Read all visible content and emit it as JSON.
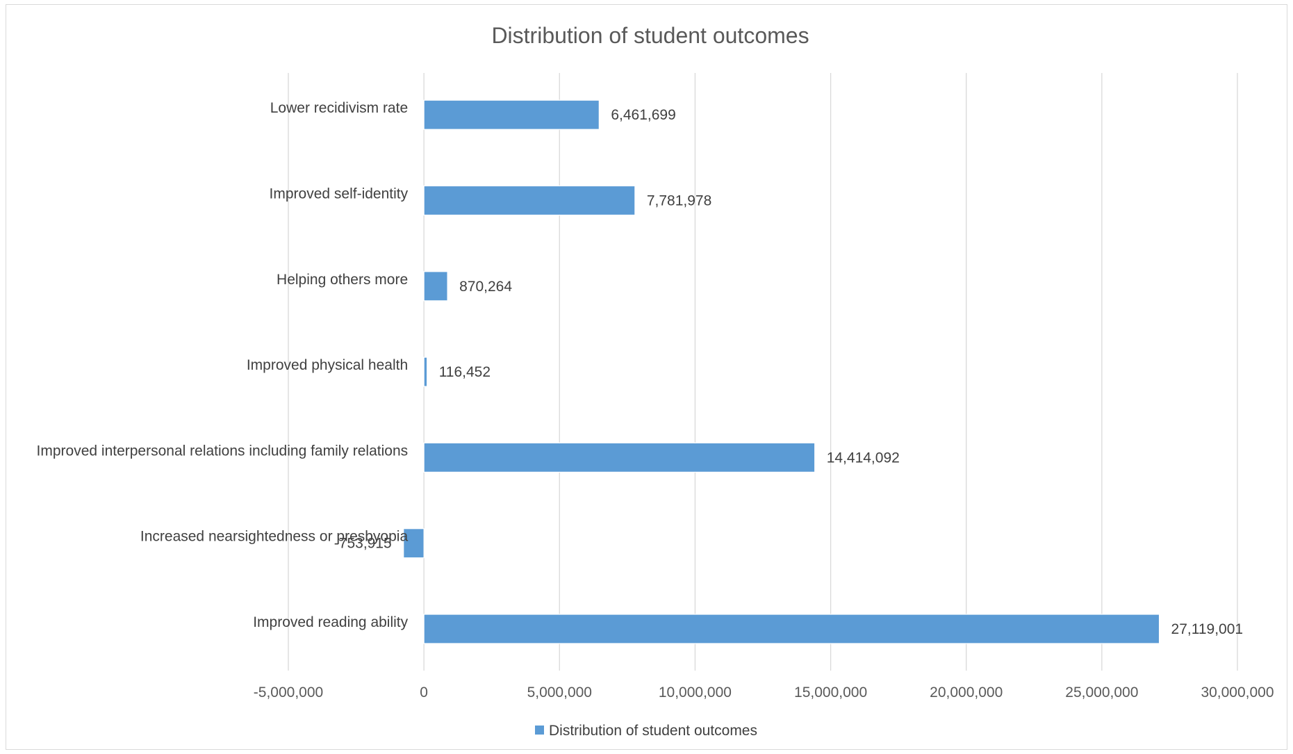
{
  "chart_data": {
    "type": "bar",
    "orientation": "horizontal",
    "title": "Distribution of student outcomes",
    "categories": [
      "Improved reading ability",
      "Increased nearsightedness or presbyopia",
      "Improved interpersonal relations including family relations",
      "Improved physical health",
      "Helping others more",
      "Improved self-identity",
      "Lower recidivism rate"
    ],
    "series": [
      {
        "name": "Distribution of student outcomes",
        "values": [
          27119001,
          -753915,
          14414092,
          116452,
          870264,
          7781978,
          6461699
        ],
        "value_labels": [
          "27,119,001",
          "-753,915",
          "14,414,092",
          "116,452",
          "870,264",
          "7,781,978",
          "6,461,699"
        ],
        "color": "#5b9bd5"
      }
    ],
    "xlim": [
      -5000000,
      30000000
    ],
    "x_ticks": [
      -5000000,
      0,
      5000000,
      10000000,
      15000000,
      20000000,
      25000000,
      30000000
    ],
    "x_tick_labels": [
      "-5,000,000",
      "0",
      "5,000,000",
      "10,000,000",
      "15,000,000",
      "20,000,000",
      "25,000,000",
      "30,000,000"
    ],
    "grid": "vertical",
    "legend": "bottom",
    "xlabel": "",
    "ylabel": ""
  }
}
